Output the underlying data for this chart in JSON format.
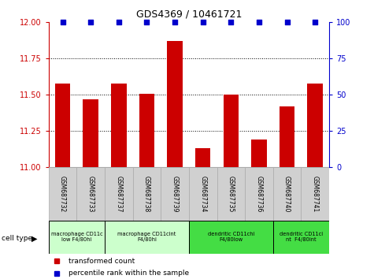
{
  "title": "GDS4369 / 10461721",
  "samples": [
    "GSM687732",
    "GSM687733",
    "GSM687737",
    "GSM687738",
    "GSM687739",
    "GSM687734",
    "GSM687735",
    "GSM687736",
    "GSM687740",
    "GSM687741"
  ],
  "bar_values": [
    11.58,
    11.47,
    11.58,
    11.51,
    11.87,
    11.13,
    11.5,
    11.19,
    11.42,
    11.58
  ],
  "percentile_values": [
    100,
    100,
    100,
    100,
    100,
    100,
    100,
    100,
    100,
    100
  ],
  "ylim_left": [
    11.0,
    12.0
  ],
  "ylim_right": [
    0,
    100
  ],
  "yticks_left": [
    11.0,
    11.25,
    11.5,
    11.75,
    12.0
  ],
  "yticks_right": [
    0,
    25,
    50,
    75,
    100
  ],
  "bar_color": "#cc0000",
  "percentile_color": "#0000cc",
  "cell_type_groups": [
    {
      "label": "macrophage CD11c\nlow F4/80hi",
      "start": 0,
      "end": 2,
      "color": "#ccffcc"
    },
    {
      "label": "macrophage CD11cint\nF4/80hi",
      "start": 2,
      "end": 5,
      "color": "#ccffcc"
    },
    {
      "label": "dendritic CD11chi\nF4/80low",
      "start": 5,
      "end": 8,
      "color": "#44dd44"
    },
    {
      "label": "dendritic CD11ci\nnt  F4/80int",
      "start": 8,
      "end": 10,
      "color": "#44dd44"
    }
  ],
  "legend_bar_label": "transformed count",
  "legend_dot_label": "percentile rank within the sample",
  "cell_type_label": "cell type",
  "sample_bg_color": "#d0d0d0",
  "sample_border_color": "#aaaaaa"
}
